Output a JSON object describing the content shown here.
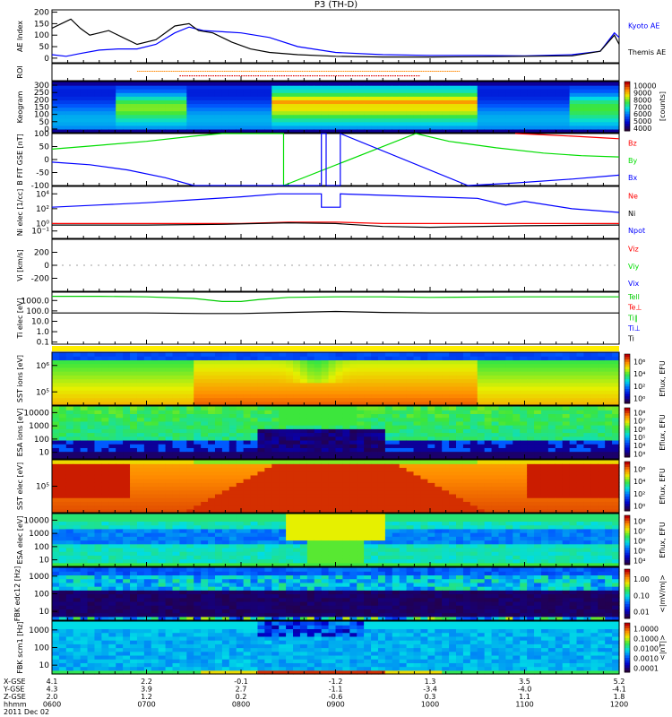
{
  "title": "P3 (TH-D)",
  "chart_data": [
    {
      "type": "line",
      "name": "ae",
      "ylabel": "AE Index",
      "ylim": [
        -20,
        210
      ],
      "ticks": [
        "200",
        "150",
        "100",
        "50",
        "0"
      ],
      "tickvals": [
        200,
        150,
        100,
        50,
        0
      ],
      "series": [
        {
          "name": "Kyoto AE",
          "color": "#0000ff",
          "x": [
            6.0,
            6.15,
            6.3,
            6.5,
            6.7,
            6.9,
            7.1,
            7.3,
            7.45,
            7.6,
            7.8,
            8.0,
            8.3,
            8.6,
            9.0,
            9.5,
            10.0,
            10.5,
            11.0,
            11.5,
            11.8,
            11.95,
            12.0
          ],
          "y": [
            15,
            8,
            20,
            35,
            40,
            40,
            60,
            110,
            135,
            120,
            115,
            110,
            90,
            50,
            25,
            15,
            12,
            12,
            10,
            15,
            30,
            110,
            90
          ]
        },
        {
          "name": "Themis AE",
          "color": "#000000",
          "x": [
            6.0,
            6.1,
            6.2,
            6.3,
            6.4,
            6.5,
            6.6,
            6.75,
            6.9,
            7.1,
            7.3,
            7.45,
            7.55,
            7.7,
            7.9,
            8.1,
            8.3,
            8.6,
            9.0,
            9.5,
            10.0,
            10.5,
            11.0,
            11.5,
            11.8,
            11.95,
            12.0
          ],
          "y": [
            130,
            150,
            170,
            130,
            100,
            110,
            120,
            90,
            60,
            80,
            140,
            150,
            120,
            110,
            70,
            40,
            25,
            15,
            8,
            5,
            5,
            6,
            8,
            10,
            30,
            100,
            60
          ]
        }
      ]
    },
    {
      "type": "heatmap",
      "name": "roi",
      "ylabel": "ROI"
    },
    {
      "type": "heatmap",
      "name": "keogram",
      "ylabel": "Keogram",
      "ticks": [
        "300",
        "250",
        "200",
        "150",
        "100",
        "50",
        "0"
      ],
      "colorbar": {
        "label": "[counts]",
        "ticks": [
          "10000",
          "9000",
          "8000",
          "7000",
          "6000",
          "5000",
          "4000"
        ]
      }
    },
    {
      "type": "line",
      "name": "bfit",
      "ylabel": "B FIT GSE [nT]",
      "ylim": [
        -100,
        100
      ],
      "ticks": [
        "100",
        "50",
        "0",
        "-50",
        "-100"
      ],
      "tickvals": [
        100,
        50,
        0,
        -50,
        -100
      ],
      "series": [
        {
          "name": "Bz",
          "color": "#ff0000",
          "x": [
            10.9,
            11.2,
            11.5,
            11.8,
            12.0
          ],
          "y": [
            100,
            95,
            90,
            84,
            80
          ]
        },
        {
          "name": "By",
          "color": "#00dd00",
          "x": [
            6.0,
            6.5,
            7.0,
            7.5,
            7.8,
            8.45,
            8.45,
            9.85,
            10.2,
            10.7,
            11.2,
            11.6,
            12.0
          ],
          "y": [
            40,
            55,
            70,
            90,
            100,
            100,
            -100,
            100,
            70,
            45,
            25,
            15,
            10
          ]
        },
        {
          "name": "Bx",
          "color": "#0000ff",
          "x": [
            6.0,
            6.4,
            6.8,
            7.2,
            7.5,
            8.85,
            8.85,
            8.9,
            8.9,
            9.05,
            9.05,
            10.4,
            10.9,
            11.5,
            12.0
          ],
          "y": [
            -10,
            -20,
            -40,
            -70,
            -100,
            -100,
            100,
            100,
            -100,
            -100,
            100,
            -100,
            -90,
            -75,
            -60
          ]
        }
      ]
    },
    {
      "type": "line",
      "name": "ni",
      "ylabel": "Ni elec [1/cc]",
      "ylim": [
        -2,
        5
      ],
      "log": true,
      "ticks": [
        "10⁴",
        "10²",
        "10⁰",
        "10⁻¹"
      ],
      "tickvals": [
        4,
        2,
        0,
        -1
      ],
      "series": [
        {
          "name": "Ne",
          "color": "#ff0000",
          "x": [
            6.0,
            7.0,
            8.0,
            8.5,
            9.0,
            9.5,
            10.0,
            11.0,
            12.0
          ],
          "y": [
            0,
            0,
            0,
            0.2,
            0.2,
            0,
            0,
            0,
            0
          ]
        },
        {
          "name": "Ni",
          "color": "#000000",
          "x": [
            6.0,
            7.0,
            7.8,
            8.5,
            9.0,
            9.5,
            10.0,
            11.0,
            12.0
          ],
          "y": [
            -0.2,
            -0.2,
            -0.1,
            0.1,
            0,
            -0.4,
            -0.5,
            -0.3,
            -0.2
          ]
        },
        {
          "name": "Npot",
          "color": "#0000ff",
          "x": [
            6.0,
            6.5,
            7.0,
            7.5,
            8.0,
            8.4,
            8.85,
            8.85,
            9.05,
            9.05,
            9.5,
            10.0,
            10.5,
            10.8,
            11.0,
            11.5,
            12.0
          ],
          "y": [
            2.2,
            2.5,
            2.8,
            3.2,
            3.6,
            4.0,
            4.0,
            2.2,
            2.2,
            4.0,
            3.8,
            3.6,
            3.4,
            2.5,
            3.0,
            2.0,
            1.5
          ]
        }
      ]
    },
    {
      "type": "line",
      "name": "vi",
      "ylabel": "Vi [km/s]",
      "ylim": [
        -400,
        400
      ],
      "ticks": [
        "200",
        "0",
        "-200"
      ],
      "tickvals": [
        200,
        0,
        -200
      ],
      "series": [
        {
          "name": "Viz",
          "color": "#ff0000"
        },
        {
          "name": "Viy",
          "color": "#00dd00"
        },
        {
          "name": "Vix",
          "color": "#0000ff"
        }
      ]
    },
    {
      "type": "line",
      "name": "ti",
      "ylabel": "Ti elec [eV]",
      "ylim": [
        -1.2,
        3.8
      ],
      "log": true,
      "ticks": [
        "1000.0",
        "100.0",
        "10.0",
        "1.0",
        "0.1"
      ],
      "tickvals": [
        3,
        2,
        1,
        0,
        -1
      ],
      "series": [
        {
          "name": "Tell",
          "color": "#00cc00",
          "x": [
            6.0,
            6.5,
            7.0,
            7.5,
            7.8,
            8.0,
            8.2,
            8.5,
            9.0,
            9.5,
            10.0,
            11.0,
            12.0
          ],
          "y": [
            3.4,
            3.4,
            3.35,
            3.2,
            2.9,
            2.9,
            3.1,
            3.3,
            3.35,
            3.35,
            3.3,
            3.35,
            3.35
          ]
        },
        {
          "name": "Te⊥",
          "color": "#ff0000"
        },
        {
          "name": "Ti∥",
          "color": "#00cc00"
        },
        {
          "name": "Ti⊥",
          "color": "#0000ff"
        },
        {
          "name": "Ti",
          "color": "#000000",
          "x": [
            6.0,
            7.0,
            7.6,
            8.0,
            8.5,
            9.0,
            9.5,
            10.0,
            11.0,
            12.0
          ],
          "y": [
            1.8,
            1.8,
            1.75,
            1.75,
            1.85,
            1.95,
            1.85,
            1.8,
            1.8,
            1.8
          ]
        }
      ]
    },
    {
      "type": "heatmap",
      "name": "sst-ions",
      "ylabel": "SST ions [eV]",
      "ticks": [
        "10⁶",
        "10⁵"
      ],
      "colorbar": {
        "label": "Eflux, EFU",
        "ticks": [
          "10⁶",
          "10⁴",
          "10²",
          "10⁰"
        ]
      }
    },
    {
      "type": "heatmap",
      "name": "esa-ions",
      "ylabel": "ESA ions [eV]",
      "ticks": [
        "10000",
        "1000",
        "100",
        "10"
      ],
      "colorbar": {
        "label": "Eflux, EFU",
        "ticks": [
          "10⁸",
          "10⁷",
          "10⁶",
          "10⁵",
          "10⁴",
          "10³"
        ]
      }
    },
    {
      "type": "heatmap",
      "name": "sst-elec",
      "ylabel": "SST elec [eV]",
      "ticks": [
        "10⁵"
      ],
      "colorbar": {
        "label": "Eflux, EFU",
        "ticks": [
          "10⁶",
          "10⁴",
          "10²",
          "10⁰"
        ]
      }
    },
    {
      "type": "heatmap",
      "name": "esa-elec",
      "ylabel": "ESA elec [eV]",
      "ticks": [
        "10000",
        "1000",
        "100",
        "10"
      ],
      "colorbar": {
        "label": "Eflux, EFU",
        "ticks": [
          "10⁸",
          "10⁷",
          "10⁶",
          "10⁵",
          "10⁴"
        ]
      }
    },
    {
      "type": "heatmap",
      "name": "fbk-edc12",
      "ylabel": "FBK edc12 [Hz]",
      "ticks": [
        "1000",
        "100",
        "10"
      ],
      "colorbar": {
        "label": "<|mV/m|>",
        "ticks": [
          "1.00",
          "0.10",
          "0.01"
        ]
      }
    },
    {
      "type": "heatmap",
      "name": "fbk-scm1",
      "ylabel": "FBK scm1 [Hz]",
      "ticks": [
        "1000",
        "100",
        "10"
      ],
      "colorbar": {
        "label": "<|nT|>",
        "ticks": [
          "1.0000",
          "0.1000",
          "0.0100",
          "0.0010",
          "0.0001"
        ]
      }
    }
  ],
  "xaxis": {
    "row_labels": [
      "X-GSE",
      "Y-GSE",
      "Z-GSE",
      "hhmm",
      "2011 Dec 02"
    ],
    "ticks": [
      {
        "t": 6,
        "vals": [
          "4.1",
          "4.3",
          "2.0",
          "0600"
        ]
      },
      {
        "t": 7,
        "vals": [
          "2.2",
          "3.9",
          "1.2",
          "0700"
        ]
      },
      {
        "t": 8,
        "vals": [
          "-0.1",
          "2.7",
          "0.2",
          "0800"
        ]
      },
      {
        "t": 9,
        "vals": [
          "-1.2",
          "-1.1",
          "-0.6",
          "0900"
        ]
      },
      {
        "t": 10,
        "vals": [
          "1.3",
          "-3.4",
          "0.3",
          "1000"
        ]
      },
      {
        "t": 11,
        "vals": [
          "3.5",
          "-4.0",
          "1.1",
          "1100"
        ]
      },
      {
        "t": 12,
        "vals": [
          "5.2",
          "-4.1",
          "1.8",
          "1200"
        ]
      }
    ]
  }
}
